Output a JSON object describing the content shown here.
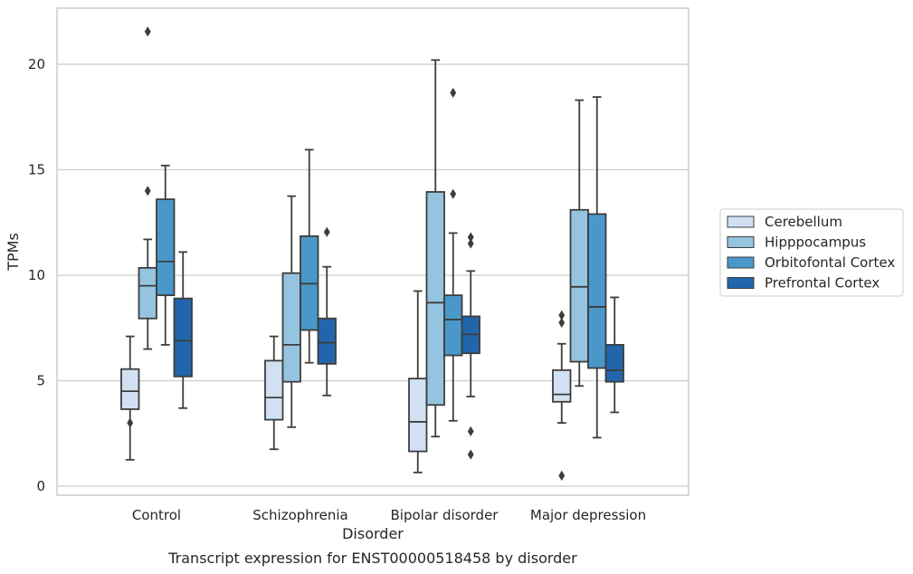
{
  "chart_data": {
    "type": "box",
    "ylabel": "TPMs",
    "xlabel": "Disorder",
    "caption": "Transcript expression for ENST00000518458 by disorder",
    "ylim": [
      -0.5,
      22.7
    ],
    "yticks": [
      0,
      5,
      10,
      15,
      20
    ],
    "grid": true,
    "legend_position": "right",
    "categories": [
      "Control",
      "Schizophrenia",
      "Bipolar disorder",
      "Major depression"
    ],
    "series": [
      {
        "name": "Cerebellum",
        "color": "#d0e1f2",
        "boxes": [
          {
            "whisker_low": 1.25,
            "q1": 3.65,
            "median": 4.5,
            "q3": 5.55,
            "whisker_high": 7.1,
            "outliers": [
              3.0
            ]
          },
          {
            "whisker_low": 1.75,
            "q1": 3.15,
            "median": 4.2,
            "q3": 5.95,
            "whisker_high": 7.1,
            "outliers": []
          },
          {
            "whisker_low": 0.65,
            "q1": 1.65,
            "median": 3.05,
            "q3": 5.1,
            "whisker_high": 9.25,
            "outliers": []
          },
          {
            "whisker_low": 3.0,
            "q1": 4.0,
            "median": 4.35,
            "q3": 5.5,
            "whisker_high": 6.75,
            "outliers": [
              0.5,
              7.75,
              8.1
            ]
          }
        ]
      },
      {
        "name": "Hipppocampus",
        "color": "#94c4df",
        "boxes": [
          {
            "whisker_low": 6.5,
            "q1": 7.95,
            "median": 9.5,
            "q3": 10.35,
            "whisker_high": 11.7,
            "outliers": [
              14.0,
              21.55
            ]
          },
          {
            "whisker_low": 2.8,
            "q1": 4.95,
            "median": 6.7,
            "q3": 10.1,
            "whisker_high": 13.75,
            "outliers": []
          },
          {
            "whisker_low": 2.35,
            "q1": 3.85,
            "median": 8.7,
            "q3": 13.95,
            "whisker_high": 20.2,
            "outliers": []
          },
          {
            "whisker_low": 4.75,
            "q1": 5.9,
            "median": 9.45,
            "q3": 13.1,
            "whisker_high": 18.3,
            "outliers": []
          }
        ]
      },
      {
        "name": "Orbitofontal Cortex",
        "color": "#4a98c9",
        "boxes": [
          {
            "whisker_low": 6.7,
            "q1": 9.05,
            "median": 10.65,
            "q3": 13.6,
            "whisker_high": 15.2,
            "outliers": []
          },
          {
            "whisker_low": 5.85,
            "q1": 7.4,
            "median": 9.6,
            "q3": 11.85,
            "whisker_high": 15.95,
            "outliers": []
          },
          {
            "whisker_low": 3.1,
            "q1": 6.2,
            "median": 7.9,
            "q3": 9.05,
            "whisker_high": 12.0,
            "outliers": [
              13.85,
              18.65
            ]
          },
          {
            "whisker_low": 2.3,
            "q1": 5.6,
            "median": 8.5,
            "q3": 12.9,
            "whisker_high": 18.45,
            "outliers": []
          }
        ]
      },
      {
        "name": "Prefrontal Cortex",
        "color": "#2166ac",
        "boxes": [
          {
            "whisker_low": 3.7,
            "q1": 5.2,
            "median": 6.9,
            "q3": 8.9,
            "whisker_high": 11.1,
            "outliers": []
          },
          {
            "whisker_low": 4.3,
            "q1": 5.8,
            "median": 6.8,
            "q3": 7.95,
            "whisker_high": 10.4,
            "outliers": [
              12.05
            ]
          },
          {
            "whisker_low": 4.25,
            "q1": 6.3,
            "median": 7.2,
            "q3": 8.05,
            "whisker_high": 10.2,
            "outliers": [
              1.5,
              2.6,
              11.5,
              11.8
            ]
          },
          {
            "whisker_low": 3.5,
            "q1": 4.95,
            "median": 5.5,
            "q3": 6.7,
            "whisker_high": 8.95,
            "outliers": []
          }
        ]
      }
    ]
  }
}
